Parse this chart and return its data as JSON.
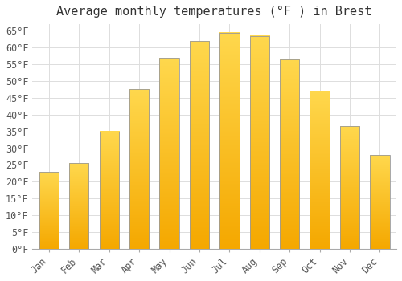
{
  "title": "Average monthly temperatures (°F ) in Brest",
  "months": [
    "Jan",
    "Feb",
    "Mar",
    "Apr",
    "May",
    "Jun",
    "Jul",
    "Aug",
    "Sep",
    "Oct",
    "Nov",
    "Dec"
  ],
  "values": [
    23,
    25.5,
    35,
    47.5,
    57,
    62,
    64.5,
    63.5,
    56.5,
    47,
    36.5,
    28
  ],
  "bar_color_bottom": "#F5A800",
  "bar_color_top": "#FFD84D",
  "bar_edge_color": "#999999",
  "background_color": "#FFFFFF",
  "grid_color": "#DDDDDD",
  "ytick_min": 0,
  "ytick_max": 65,
  "ytick_step": 5,
  "title_fontsize": 11,
  "tick_fontsize": 8.5,
  "font_family": "monospace"
}
